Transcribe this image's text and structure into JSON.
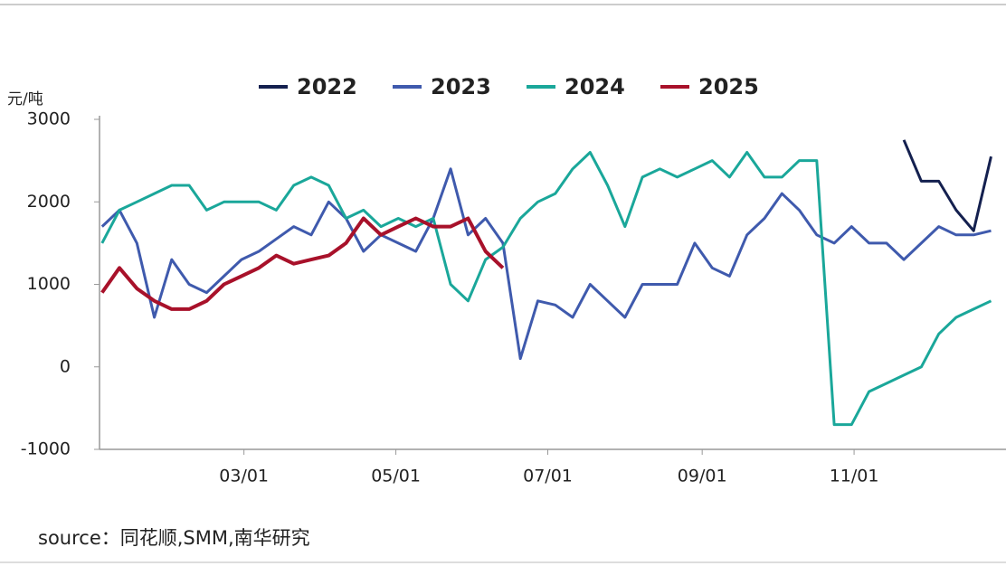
{
  "chart_data": {
    "type": "line",
    "y_unit": "元/吨",
    "source": "source：同花顺,SMM,南华研究",
    "x": [
      3,
      10,
      17,
      24,
      31,
      38,
      45,
      52,
      59,
      66,
      73,
      80,
      87,
      94,
      101,
      108,
      115,
      122,
      129,
      136,
      143,
      150,
      157,
      164,
      171,
      178,
      185,
      192,
      199,
      206,
      213,
      220,
      227,
      234,
      241,
      248,
      255,
      262,
      269,
      276,
      283,
      290,
      297,
      304,
      311,
      318,
      325,
      332,
      339,
      346,
      353,
      360
    ],
    "xlim": [
      2,
      366
    ],
    "xticks": [
      {
        "value": 60,
        "label": "03/01"
      },
      {
        "value": 121,
        "label": "05/01"
      },
      {
        "value": 182,
        "label": "07/01"
      },
      {
        "value": 244,
        "label": "09/01"
      },
      {
        "value": 305,
        "label": "11/01"
      }
    ],
    "ylim": [
      -1000,
      3000
    ],
    "yticks": [
      {
        "value": -1000,
        "label": "-1000"
      },
      0,
      1000,
      2000,
      3000
    ],
    "legend": "top",
    "series": [
      {
        "name": "2022",
        "color": "#14204f",
        "values": [
          null,
          null,
          null,
          null,
          null,
          null,
          null,
          null,
          null,
          null,
          null,
          null,
          null,
          null,
          null,
          null,
          null,
          null,
          null,
          null,
          null,
          null,
          null,
          null,
          null,
          null,
          null,
          null,
          null,
          null,
          null,
          null,
          null,
          null,
          null,
          null,
          null,
          null,
          null,
          null,
          null,
          null,
          null,
          null,
          null,
          null,
          2750,
          2250,
          2250,
          1900,
          1650,
          2550
        ]
      },
      {
        "name": "2023",
        "color": "#3f5aad",
        "values": [
          1700,
          1900,
          1500,
          600,
          1300,
          1000,
          900,
          1100,
          1300,
          1400,
          1550,
          1700,
          1600,
          2000,
          1800,
          1400,
          1600,
          1500,
          1400,
          1800,
          2400,
          1600,
          1800,
          1500,
          100,
          800,
          750,
          600,
          1000,
          800,
          600,
          1000,
          1000,
          1000,
          1500,
          1200,
          1100,
          1600,
          1800,
          2100,
          1900,
          1600,
          1500,
          1700,
          1500,
          1500,
          1300,
          1500,
          1700,
          1600,
          1600,
          1650
        ]
      },
      {
        "name": "2024",
        "color": "#1aa79a",
        "values": [
          1500,
          1900,
          2000,
          2100,
          2200,
          2200,
          1900,
          2000,
          2000,
          2000,
          1900,
          2200,
          2300,
          2200,
          1800,
          1900,
          1700,
          1800,
          1700,
          1800,
          1000,
          800,
          1300,
          1450,
          1800,
          2000,
          2100,
          2400,
          2600,
          2200,
          1700,
          2300,
          2400,
          2300,
          2400,
          2500,
          2300,
          2600,
          2300,
          2300,
          2500,
          2500,
          -700,
          -700,
          -300,
          -200,
          -100,
          0,
          400,
          600,
          700,
          800
        ]
      },
      {
        "name": "2025",
        "color": "#a8112a",
        "values": [
          900,
          1200,
          950,
          800,
          700,
          700,
          800,
          1000,
          1100,
          1200,
          1350,
          1250,
          1300,
          1350,
          1500,
          1800,
          1600,
          1700,
          1800,
          1700,
          1700,
          1800,
          1400,
          1200,
          null,
          null,
          null,
          null,
          null,
          null,
          null,
          null,
          null,
          null,
          null,
          null,
          null,
          null,
          null,
          null,
          null,
          null,
          null,
          null,
          null,
          null,
          null,
          null,
          null,
          null,
          null,
          null
        ]
      }
    ]
  }
}
